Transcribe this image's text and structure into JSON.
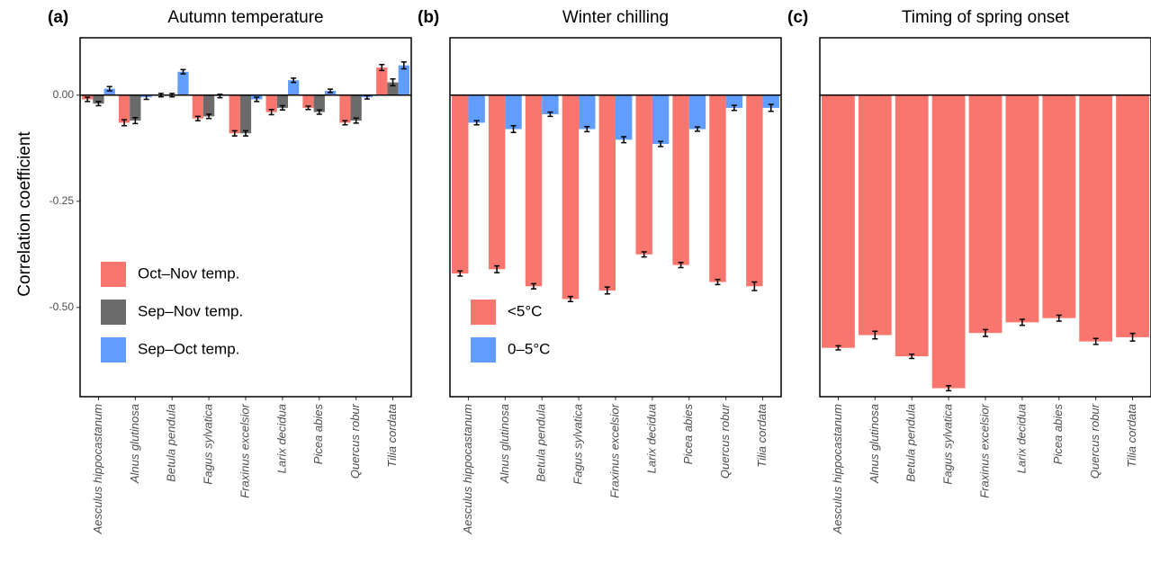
{
  "chart_data": [
    {
      "type": "bar",
      "panel_label": "(a)",
      "title": "Autumn temperature",
      "y_label": "Correlation coefficient",
      "categories": [
        "Aesculus hippocastanum",
        "Alnus glutinosa",
        "Betula pendula",
        "Fagus sylvatica",
        "Fraxinus excelsior",
        "Larix decidua",
        "Picea abies",
        "Quercus robur",
        "Tilia cordata"
      ],
      "series": [
        {
          "name": "Oct–Nov temp.",
          "color": "#F8766D",
          "values": [
            -0.01,
            -0.065,
            0.0,
            -0.055,
            -0.09,
            -0.04,
            -0.03,
            -0.065,
            0.065
          ],
          "errors": [
            0.005,
            0.007,
            0.004,
            0.005,
            0.006,
            0.006,
            0.004,
            0.005,
            0.007
          ]
        },
        {
          "name": "Sep–Nov temp.",
          "color": "#6B6B6B",
          "values": [
            -0.02,
            -0.06,
            0.0,
            -0.05,
            -0.09,
            -0.03,
            -0.04,
            -0.06,
            0.03
          ],
          "errors": [
            0.005,
            0.007,
            0.004,
            0.005,
            0.006,
            0.005,
            0.005,
            0.006,
            0.008
          ]
        },
        {
          "name": "Sep–Oct temp.",
          "color": "#619CFF",
          "values": [
            0.015,
            -0.005,
            0.055,
            -0.002,
            -0.01,
            0.035,
            0.01,
            -0.005,
            0.07
          ],
          "errors": [
            0.005,
            0.005,
            0.005,
            0.004,
            0.005,
            0.005,
            0.004,
            0.004,
            0.008
          ]
        }
      ],
      "ylim": [
        -0.71,
        0.135
      ],
      "yticks": [
        {
          "value": 0,
          "label": "0.00"
        },
        {
          "value": -0.25,
          "label": "-0.25"
        },
        {
          "value": -0.5,
          "label": "-0.50"
        }
      ],
      "legend": "bottom-left"
    },
    {
      "type": "bar",
      "panel_label": "(b)",
      "title": "Winter chilling",
      "categories": [
        "Aesculus hippocastanum",
        "Alnus glutinosa",
        "Betula pendula",
        "Fagus sylvatica",
        "Fraxinus excelsior",
        "Larix decidua",
        "Picea abies",
        "Quercus robur",
        "Tilia cordata"
      ],
      "series": [
        {
          "name": "<5°C",
          "color": "#F8766D",
          "values": [
            -0.42,
            -0.41,
            -0.45,
            -0.48,
            -0.46,
            -0.375,
            -0.4,
            -0.44,
            -0.45
          ],
          "errors": [
            0.006,
            0.008,
            0.006,
            0.006,
            0.008,
            0.006,
            0.006,
            0.006,
            0.01
          ]
        },
        {
          "name": "0–5°C",
          "color": "#619CFF",
          "values": [
            -0.065,
            -0.08,
            -0.045,
            -0.08,
            -0.105,
            -0.115,
            -0.08,
            -0.03,
            -0.03
          ],
          "errors": [
            0.005,
            0.008,
            0.005,
            0.006,
            0.007,
            0.006,
            0.005,
            0.006,
            0.008
          ]
        }
      ],
      "ylim": [
        -0.71,
        0.135
      ],
      "legend": "bottom-left"
    },
    {
      "type": "bar",
      "panel_label": "(c)",
      "title": "Timing of spring onset",
      "categories": [
        "Aesculus hippocastanum",
        "Alnus glutinosa",
        "Betula pendula",
        "Fagus sylvatica",
        "Fraxinus excelsior",
        "Larix decidua",
        "Picea abies",
        "Quercus robur",
        "Tilia cordata"
      ],
      "series": [
        {
          "color": "#F8766D",
          "values": [
            -0.595,
            -0.565,
            -0.615,
            -0.69,
            -0.56,
            -0.535,
            -0.525,
            -0.58,
            -0.57
          ],
          "errors": [
            0.005,
            0.009,
            0.005,
            0.006,
            0.008,
            0.007,
            0.007,
            0.007,
            0.009
          ]
        }
      ],
      "ylim": [
        -0.71,
        0.135
      ]
    }
  ]
}
